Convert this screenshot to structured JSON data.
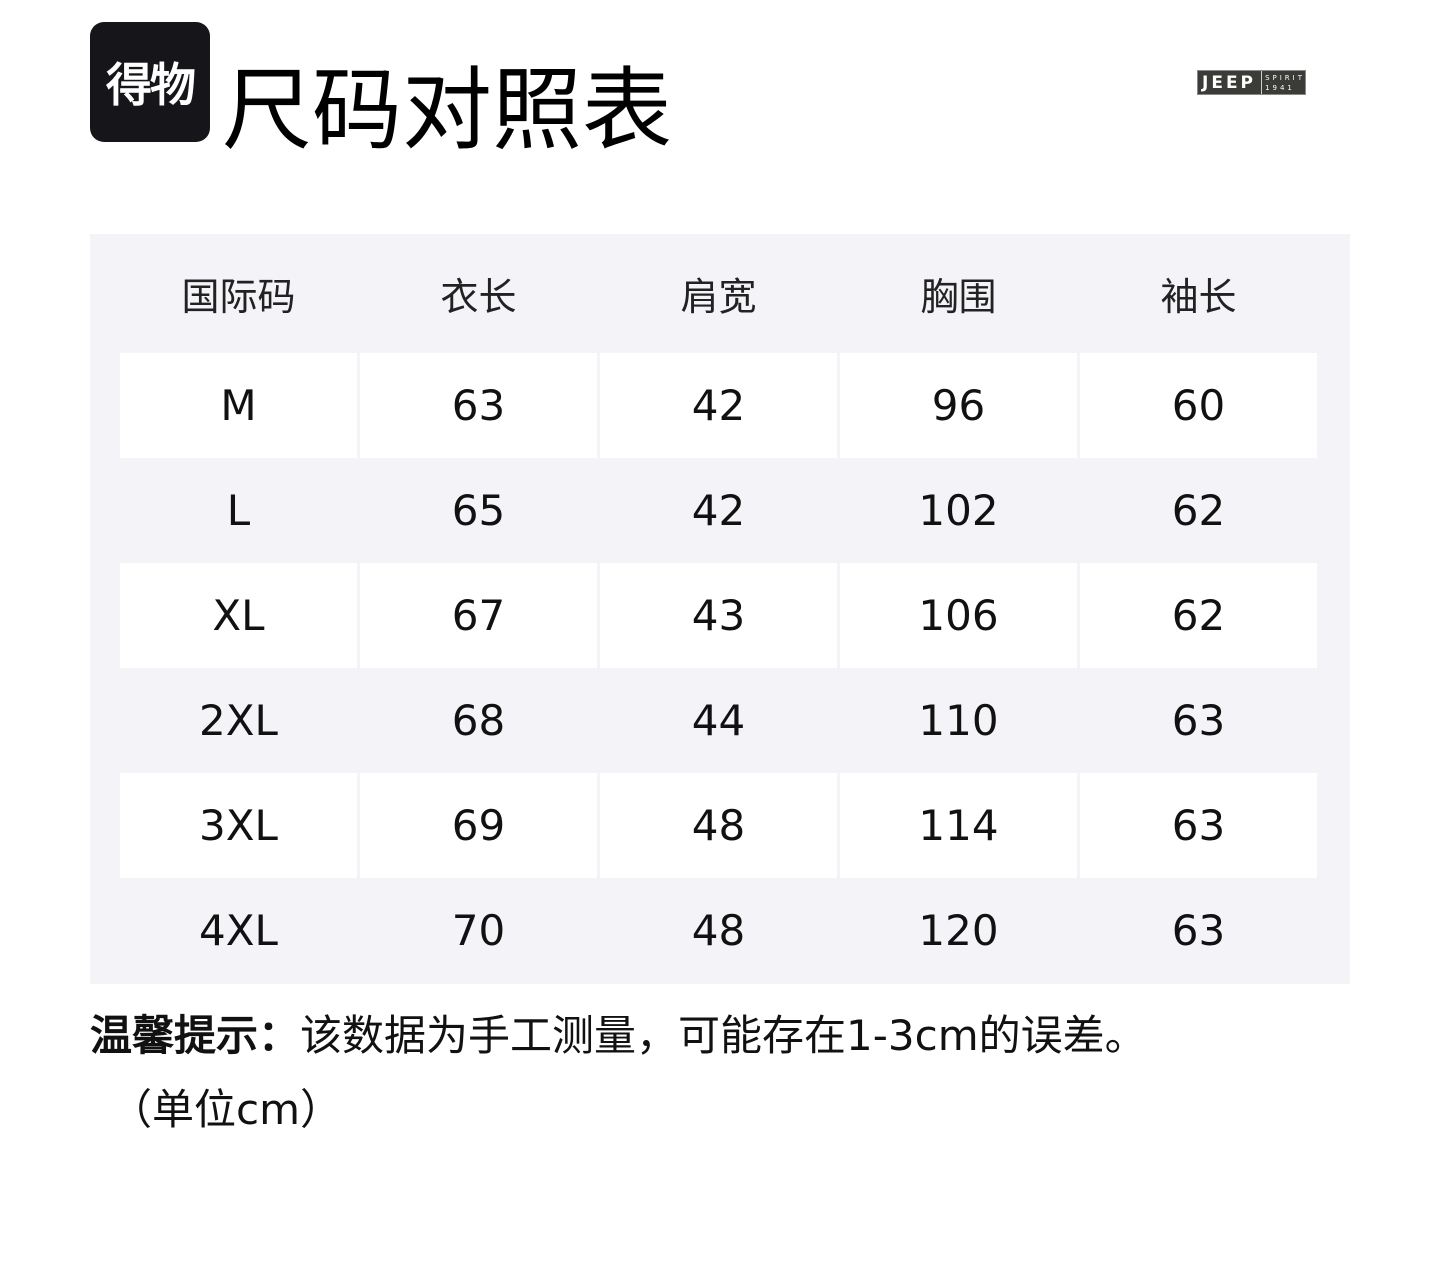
{
  "logo": "得物",
  "title": "尺码对照表",
  "brand": {
    "main": "JEEP",
    "sub1": "SPIRIT",
    "sub2": "1941"
  },
  "table": {
    "headers": [
      "国际码",
      "衣长",
      "肩宽",
      "胸围",
      "袖长"
    ],
    "rows": [
      [
        "M",
        "63",
        "42",
        "96",
        "60"
      ],
      [
        "L",
        "65",
        "42",
        "102",
        "62"
      ],
      [
        "XL",
        "67",
        "43",
        "106",
        "62"
      ],
      [
        "2XL",
        "68",
        "44",
        "110",
        "63"
      ],
      [
        "3XL",
        "69",
        "48",
        "114",
        "63"
      ],
      [
        "4XL",
        "70",
        "48",
        "120",
        "63"
      ]
    ]
  },
  "note": {
    "label": "温馨提示：",
    "text": "该数据为手工测量，可能存在1-3cm的误差。",
    "unit": "（单位cm）"
  }
}
